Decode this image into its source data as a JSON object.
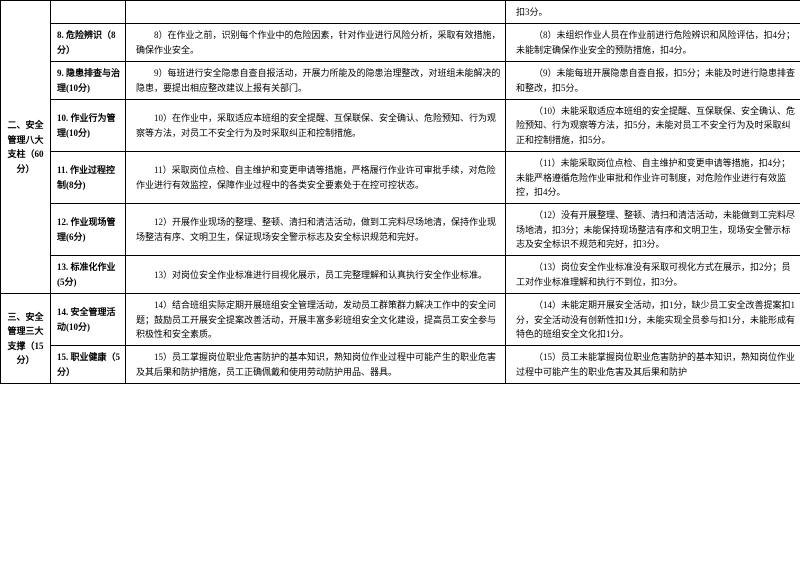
{
  "table": {
    "rows": [
      {
        "category": "二、安全管理八大支柱（60分）",
        "category_rowspan": 6,
        "item": "",
        "desc": "",
        "deduct": "扣3分。",
        "continuation": true
      },
      {
        "item": "8. 危险辨识（8分）",
        "desc": "8）在作业之前，识别每个作业中的危险因素，针对作业进行风险分析，采取有效措施，确保作业安全。",
        "deduct": "（8）未组织作业人员在作业前进行危险辨识和风险评估，扣4分；未能制定确保作业安全的预防措施，扣4分。"
      },
      {
        "item": "9. 隐患排查与治理(10分)",
        "desc": "9）每班进行安全隐患自查自报活动，开展力所能及的隐患治理整改，对班组未能解决的隐患，要提出相应整改建议上报有关部门。",
        "deduct": "（9）未能每班开展隐患自查自报，扣5分；未能及时进行隐患排查和整改，扣5分。"
      },
      {
        "item": "10. 作业行为管理(10分)",
        "desc": "10）在作业中，采取适应本班组的安全提醒、互保联保、安全确认、危险预知、行为观察等方法，对员工不安全行为及时采取纠正和控制措施。",
        "deduct": "（10）未能采取适应本班组的安全提醒、互保联保、安全确认、危险预知、行为观察等方法，扣5分，未能对员工不安全行为及时采取纠正和控制措施，扣5分。"
      },
      {
        "item": "11. 作业过程控制(8分)",
        "desc": "11）采取岗位点检、自主维护和变更申请等措施，严格履行作业许可审批手续，对危险作业进行有效监控，保障作业过程中的各类安全要素处于在控可控状态。",
        "deduct": "（11）未能采取岗位点检、自主维护和变更申请等措施，扣4分；未能严格遵循危险作业审批和作业许可制度，对危险作业进行有效监控，扣4分。"
      },
      {
        "item": "12. 作业现场管理(6分)",
        "desc": "12）开展作业现场的整理、整顿、清扫和清洁活动，做到工完料尽场地清，保持作业现场整洁有序、文明卫生，保证现场安全警示标志及安全标识规范和完好。",
        "deduct": "（12）没有开展整理、整顿、清扫和清洁活动，未能做到工完料尽场地清，扣3分；未能保持现场整洁有序和文明卫生，现场安全警示标志及安全标识不规范和完好，扣3分。"
      },
      {
        "item": "13. 标准化作业(5分)",
        "desc": "13）对岗位安全作业标准进行目视化展示，员工完整理解和认真执行安全作业标准。",
        "deduct": "（13）岗位安全作业标准没有采取可视化方式在展示，扣2分；员工对作业标准理解和执行不到位，扣3分。"
      },
      {
        "category": "三、安全管理三大支撑（15分）",
        "category_rowspan": 2,
        "item": "14. 安全管理活动(10分)",
        "desc": "14）结合班组实际定期开展班组安全管理活动，发动员工群策群力解决工作中的安全问题；鼓励员工开展安全提案改善活动，开展丰富多彩班组安全文化建设，提高员工安全参与积极性和安全素质。",
        "deduct": "（14）未能定期开展安全活动，扣1分，缺少员工安全改善提案扣1分，安全活动没有创新性扣1分，未能实现全员参与扣1分，未能形成有特色的班组安全文化扣1分。"
      },
      {
        "item": "15. 职业健康（5分）",
        "desc": "15）员工掌握岗位职业危害防护的基本知识，熟知岗位作业过程中可能产生的职业危害及其后果和防护措施，员工正确佩戴和使用劳动防护用品、器具。",
        "deduct": "（15）员工未能掌握岗位职业危害防护的基本知识，熟知岗位作业过程中可能产生的职业危害及其后果和防护"
      }
    ]
  }
}
